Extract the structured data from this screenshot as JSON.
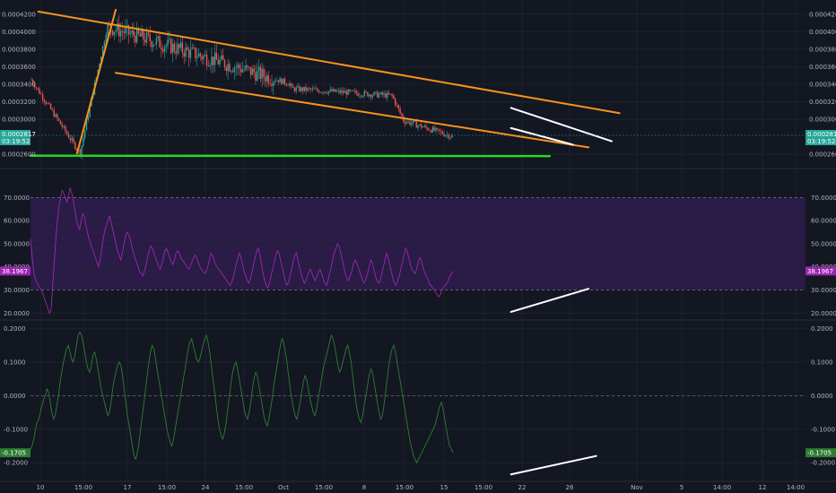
{
  "chart_data": [
    {
      "type": "candlestick",
      "panel": "price",
      "y_ticks": [
        "0.0004200",
        "0.0004000",
        "0.0003800",
        "0.0003600",
        "0.0003400",
        "0.0003200",
        "0.0003000",
        "0.0002600"
      ],
      "ylim": [
        0.00025,
        0.00043
      ],
      "current_price_label": "0.0002817",
      "countdown_label": "03:19:52",
      "current_price": 0.0002817,
      "colors": {
        "up": "#26a69a",
        "down": "#ef5350",
        "price_badge": "#26a69a"
      },
      "drawings": [
        {
          "name": "upper-channel-line",
          "color": "#f7931e",
          "from": [
            1,
            0.000423
          ],
          "to": [
            76,
            0.000307
          ]
        },
        {
          "name": "lower-channel-line",
          "color": "#f7931e",
          "from": [
            11,
            0.000353
          ],
          "to": [
            72,
            0.000268
          ]
        },
        {
          "name": "impulse-line",
          "color": "#f7931e",
          "from": [
            6,
            0.000261
          ],
          "to": [
            11,
            0.000425
          ]
        },
        {
          "name": "support-line",
          "color": "#22dd22",
          "from": [
            0,
            0.0002585
          ],
          "to": [
            67,
            0.000258
          ]
        },
        {
          "name": "wedge-upper-line",
          "color": "#ffffff",
          "from": [
            62,
            0.000313
          ],
          "to": [
            75,
            0.000275
          ]
        },
        {
          "name": "wedge-lower-line",
          "color": "#ffffff",
          "from": [
            62,
            0.00029
          ],
          "to": [
            70,
            0.000271
          ]
        }
      ]
    },
    {
      "type": "line",
      "panel": "rsi",
      "y_ticks": [
        "70.0000",
        "60.0000",
        "50.0000",
        "40.0000",
        "30.0000",
        "20.0000"
      ],
      "ylim": [
        17,
        81
      ],
      "band": [
        30,
        70
      ],
      "current_value_label": "38.1967",
      "current_value": 38.1967,
      "colors": {
        "line": "#9c27b0",
        "band": "#2a1b47",
        "badge": "#9c27b0"
      },
      "values": [
        52,
        45,
        38,
        35,
        33,
        32,
        31,
        30,
        28,
        26,
        24,
        22,
        20,
        21,
        32,
        42,
        52,
        60,
        66,
        70,
        73,
        72,
        70,
        68,
        71,
        74,
        72,
        69,
        65,
        60,
        58,
        56,
        60,
        63,
        62,
        58,
        55,
        52,
        50,
        48,
        46,
        44,
        42,
        40,
        43,
        48,
        52,
        56,
        58,
        60,
        62,
        59,
        56,
        53,
        50,
        47,
        45,
        43,
        46,
        50,
        53,
        55,
        54,
        52,
        49,
        46,
        44,
        42,
        40,
        38,
        37,
        36,
        38,
        41,
        44,
        47,
        49,
        48,
        46,
        44,
        42,
        40,
        39,
        41,
        44,
        47,
        48,
        46,
        44,
        42,
        41,
        43,
        46,
        47,
        46,
        44,
        43,
        42,
        41,
        40,
        39,
        40,
        42,
        44,
        45,
        44,
        42,
        40,
        39,
        38,
        37,
        38,
        40,
        43,
        46,
        45,
        43,
        41,
        40,
        39,
        38,
        37,
        36,
        35,
        34,
        33,
        32,
        33,
        35,
        38,
        41,
        44,
        46,
        44,
        41,
        38,
        36,
        34,
        33,
        35,
        38,
        41,
        44,
        47,
        48,
        45,
        41,
        37,
        34,
        32,
        31,
        33,
        36,
        39,
        42,
        45,
        47,
        46,
        43,
        40,
        37,
        34,
        32,
        33,
        36,
        39,
        42,
        45,
        46,
        43,
        40,
        37,
        35,
        33,
        34,
        36,
        38,
        39,
        37,
        35,
        34,
        36,
        38,
        39,
        37,
        35,
        33,
        32,
        34,
        37,
        40,
        43,
        46,
        48,
        50,
        49,
        46,
        43,
        40,
        37,
        35,
        34,
        36,
        38,
        41,
        43,
        42,
        40,
        38,
        36,
        34,
        33,
        35,
        37,
        40,
        43,
        42,
        39,
        36,
        34,
        33,
        34,
        37,
        40,
        43,
        46,
        44,
        41,
        38,
        35,
        33,
        32,
        34,
        36,
        39,
        42,
        45,
        48,
        47,
        44,
        41,
        39,
        38,
        37,
        39,
        42,
        44,
        43,
        40,
        38,
        36,
        35,
        33,
        32,
        31,
        30,
        29,
        28,
        27,
        28,
        30,
        31,
        32,
        33,
        34,
        36,
        37,
        38
      ],
      "drawings": [
        {
          "name": "rsi-divergence-line",
          "color": "#ffffff",
          "from": [
            0.62,
            20.5
          ],
          "to": [
            0.72,
            30.5
          ]
        }
      ]
    },
    {
      "type": "line",
      "panel": "oscillator",
      "y_ticks": [
        "0.2000",
        "0.1000",
        "0.0000",
        "-0.1000",
        "-0.2000"
      ],
      "ylim": [
        -0.245,
        0.215
      ],
      "zero_line": 0,
      "current_value_label": "-0.1705",
      "current_value": -0.1705,
      "colors": {
        "line": "#2e7d32",
        "badge": "#2e7d32"
      },
      "values": [
        -0.16,
        -0.15,
        -0.13,
        -0.1,
        -0.08,
        -0.07,
        -0.05,
        -0.03,
        -0.01,
        0.0,
        0.02,
        0.01,
        -0.02,
        -0.05,
        -0.07,
        -0.06,
        -0.03,
        0.0,
        0.04,
        0.07,
        0.1,
        0.12,
        0.14,
        0.15,
        0.13,
        0.11,
        0.1,
        0.12,
        0.15,
        0.18,
        0.19,
        0.18,
        0.16,
        0.13,
        0.1,
        0.08,
        0.07,
        0.09,
        0.12,
        0.13,
        0.11,
        0.08,
        0.05,
        0.02,
        0.0,
        -0.02,
        -0.04,
        -0.06,
        -0.05,
        -0.02,
        0.02,
        0.05,
        0.07,
        0.09,
        0.1,
        0.09,
        0.06,
        0.02,
        -0.02,
        -0.06,
        -0.09,
        -0.12,
        -0.15,
        -0.18,
        -0.19,
        -0.17,
        -0.14,
        -0.1,
        -0.06,
        -0.02,
        0.02,
        0.06,
        0.1,
        0.13,
        0.15,
        0.14,
        0.11,
        0.08,
        0.05,
        0.02,
        -0.01,
        -0.04,
        -0.07,
        -0.1,
        -0.12,
        -0.14,
        -0.15,
        -0.13,
        -0.1,
        -0.07,
        -0.04,
        -0.01,
        0.02,
        0.05,
        0.08,
        0.11,
        0.14,
        0.16,
        0.17,
        0.15,
        0.13,
        0.11,
        0.1,
        0.11,
        0.13,
        0.15,
        0.17,
        0.18,
        0.16,
        0.13,
        0.09,
        0.05,
        0.01,
        -0.03,
        -0.07,
        -0.1,
        -0.12,
        -0.13,
        -0.11,
        -0.08,
        -0.04,
        0.0,
        0.04,
        0.07,
        0.09,
        0.1,
        0.08,
        0.05,
        0.02,
        -0.01,
        -0.04,
        -0.06,
        -0.07,
        -0.05,
        -0.02,
        0.02,
        0.05,
        0.07,
        0.06,
        0.03,
        0.0,
        -0.03,
        -0.06,
        -0.08,
        -0.09,
        -0.07,
        -0.04,
        -0.01,
        0.03,
        0.06,
        0.09,
        0.12,
        0.15,
        0.17,
        0.16,
        0.13,
        0.1,
        0.06,
        0.02,
        -0.01,
        -0.04,
        -0.06,
        -0.07,
        -0.05,
        -0.02,
        0.01,
        0.04,
        0.06,
        0.05,
        0.02,
        -0.01,
        -0.03,
        -0.05,
        -0.06,
        -0.04,
        -0.01,
        0.02,
        0.05,
        0.08,
        0.1,
        0.12,
        0.14,
        0.16,
        0.18,
        0.17,
        0.15,
        0.12,
        0.09,
        0.07,
        0.08,
        0.1,
        0.12,
        0.14,
        0.15,
        0.13,
        0.1,
        0.06,
        0.02,
        -0.02,
        -0.05,
        -0.07,
        -0.08,
        -0.06,
        -0.03,
        0.0,
        0.03,
        0.06,
        0.08,
        0.07,
        0.04,
        0.01,
        -0.02,
        -0.05,
        -0.07,
        -0.06,
        -0.03,
        0.01,
        0.05,
        0.09,
        0.12,
        0.14,
        0.15,
        0.13,
        0.1,
        0.07,
        0.04,
        0.01,
        -0.02,
        -0.05,
        -0.08,
        -0.11,
        -0.14,
        -0.16,
        -0.18,
        -0.19,
        -0.2,
        -0.19,
        -0.18,
        -0.17,
        -0.16,
        -0.15,
        -0.14,
        -0.13,
        -0.12,
        -0.11,
        -0.1,
        -0.09,
        -0.07,
        -0.05,
        -0.03,
        -0.02,
        -0.04,
        -0.07,
        -0.1,
        -0.13,
        -0.15,
        -0.16,
        -0.17
      ],
      "drawings": [
        {
          "name": "oscillator-divergence-line",
          "color": "#ffffff",
          "from": [
            0.62,
            -0.235
          ],
          "to": [
            0.73,
            -0.18
          ]
        }
      ]
    }
  ],
  "x_ticks": [
    "10",
    "15:00",
    "17",
    "15:00",
    "24",
    "15:00",
    "Oct",
    "15:00",
    "8",
    "15:00",
    "15",
    "15:00",
    "22",
    "26",
    "Nov",
    "5",
    "14:00",
    "12",
    "14:00"
  ]
}
